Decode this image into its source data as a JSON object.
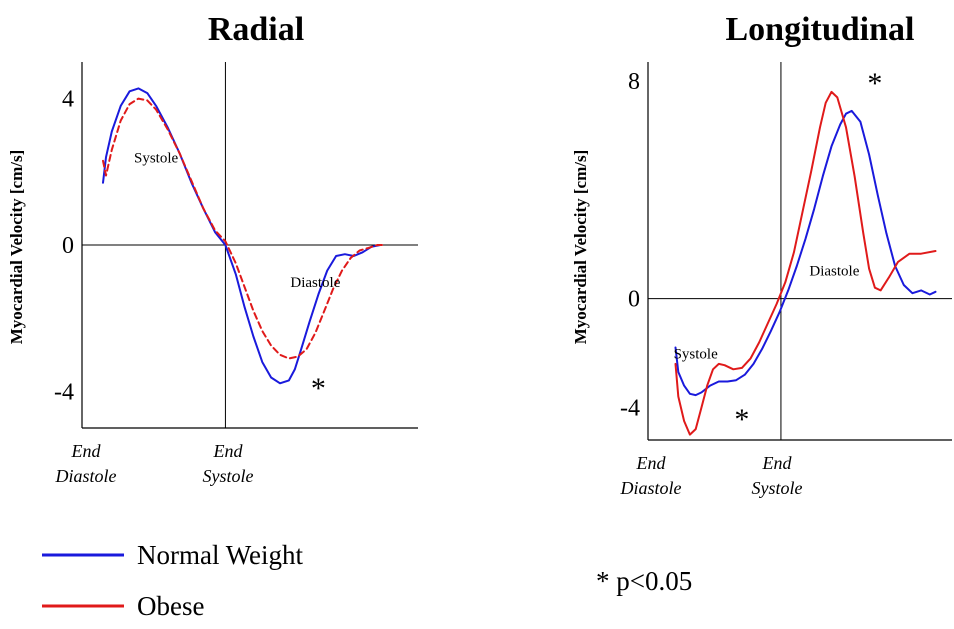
{
  "legend": {
    "items": [
      {
        "label": "Normal Weight",
        "color": "#1a1adc"
      },
      {
        "label": "Obese",
        "color": "#e01a1a"
      }
    ],
    "significance_note": "* p<0.05"
  },
  "chart_data": [
    {
      "type": "line",
      "title": "Radial",
      "ylabel": "Myocardial Velocity [cm/s]",
      "xlabel": "",
      "ylim": [
        -5,
        5
      ],
      "yticks": [
        {
          "value": 4,
          "label": "4"
        },
        {
          "value": 0,
          "label": "0"
        },
        {
          "value": -4,
          "label": "-4"
        }
      ],
      "x_range": [
        0,
        1
      ],
      "x_event_labels": [
        {
          "x": 0.0,
          "line1": "End",
          "line2": "Diastole"
        },
        {
          "x": 0.415,
          "line1": "End",
          "line2": "Systole"
        }
      ],
      "phase_labels": [
        {
          "text": "Systole",
          "x": 0.18,
          "y": 2.25
        },
        {
          "text": "Diastole",
          "x": 0.72,
          "y": -1.15
        }
      ],
      "annotations": [
        {
          "text": "*",
          "x": 0.73,
          "y": -3.85
        }
      ],
      "series": [
        {
          "name": "Normal Weight",
          "color": "#1a1adc",
          "dash": "solid",
          "x": [
            0.0,
            0.01,
            0.03,
            0.06,
            0.09,
            0.12,
            0.15,
            0.18,
            0.22,
            0.26,
            0.3,
            0.34,
            0.38,
            0.415,
            0.45,
            0.48,
            0.51,
            0.54,
            0.57,
            0.6,
            0.63,
            0.65,
            0.67,
            0.7,
            0.73,
            0.76,
            0.79,
            0.82,
            0.85,
            0.88,
            0.91,
            0.94
          ],
          "y": [
            1.7,
            2.4,
            3.1,
            3.8,
            4.2,
            4.28,
            4.15,
            3.8,
            3.2,
            2.5,
            1.7,
            1.0,
            0.35,
            0.0,
            -0.8,
            -1.7,
            -2.5,
            -3.2,
            -3.62,
            -3.78,
            -3.7,
            -3.4,
            -2.9,
            -2.1,
            -1.35,
            -0.7,
            -0.3,
            -0.25,
            -0.3,
            -0.2,
            -0.05,
            0.0
          ]
        },
        {
          "name": "Obese",
          "color": "#e01a1a",
          "dash": "dashed",
          "x": [
            0.0,
            0.01,
            0.03,
            0.06,
            0.09,
            0.12,
            0.15,
            0.18,
            0.22,
            0.26,
            0.3,
            0.34,
            0.38,
            0.415,
            0.45,
            0.48,
            0.51,
            0.54,
            0.57,
            0.6,
            0.63,
            0.66,
            0.69,
            0.72,
            0.75,
            0.78,
            0.81,
            0.84,
            0.87,
            0.9,
            0.93,
            0.95
          ],
          "y": [
            2.3,
            1.9,
            2.6,
            3.4,
            3.85,
            4.0,
            3.95,
            3.7,
            3.15,
            2.5,
            1.75,
            1.0,
            0.4,
            0.1,
            -0.5,
            -1.15,
            -1.8,
            -2.35,
            -2.75,
            -3.0,
            -3.1,
            -3.05,
            -2.85,
            -2.4,
            -1.8,
            -1.2,
            -0.7,
            -0.35,
            -0.15,
            -0.08,
            0.0,
            0.0
          ]
        }
      ]
    },
    {
      "type": "line",
      "title": "Longitudinal",
      "ylabel": "Myocardial Velocity [cm/s]",
      "xlabel": "",
      "ylim": [
        -5.2,
        8.7
      ],
      "yticks": [
        {
          "value": 8,
          "label": "8"
        },
        {
          "value": 0,
          "label": "0"
        },
        {
          "value": -4,
          "label": "-4"
        }
      ],
      "x_range": [
        0,
        1
      ],
      "x_event_labels": [
        {
          "x": 0.0,
          "line1": "End",
          "line2": "Diastole"
        },
        {
          "x": 0.415,
          "line1": "End",
          "line2": "Systole"
        }
      ],
      "phase_labels": [
        {
          "text": "Systole",
          "x": 0.12,
          "y": -2.2
        },
        {
          "text": "Diastole",
          "x": 0.6,
          "y": 0.85
        }
      ],
      "annotations": [
        {
          "text": "*",
          "x": 0.28,
          "y": -4.35
        },
        {
          "text": "*",
          "x": 0.74,
          "y": 8.0
        }
      ],
      "series": [
        {
          "name": "Normal Weight",
          "color": "#1a1adc",
          "dash": "solid",
          "x": [
            0.05,
            0.06,
            0.08,
            0.1,
            0.12,
            0.14,
            0.17,
            0.2,
            0.23,
            0.26,
            0.29,
            0.32,
            0.35,
            0.38,
            0.41,
            0.44,
            0.47,
            0.5,
            0.53,
            0.56,
            0.59,
            0.62,
            0.64,
            0.66,
            0.69,
            0.72,
            0.75,
            0.78,
            0.81,
            0.84,
            0.87,
            0.9,
            0.93,
            0.95
          ],
          "y": [
            -1.8,
            -2.7,
            -3.2,
            -3.5,
            -3.55,
            -3.45,
            -3.2,
            -3.05,
            -3.05,
            -3.0,
            -2.8,
            -2.4,
            -1.85,
            -1.2,
            -0.5,
            0.3,
            1.2,
            2.2,
            3.3,
            4.5,
            5.6,
            6.4,
            6.8,
            6.9,
            6.5,
            5.3,
            3.8,
            2.4,
            1.2,
            0.5,
            0.2,
            0.3,
            0.15,
            0.25
          ]
        },
        {
          "name": "Obese",
          "color": "#e01a1a",
          "dash": "solid",
          "x": [
            0.05,
            0.06,
            0.08,
            0.1,
            0.12,
            0.14,
            0.16,
            0.18,
            0.2,
            0.22,
            0.25,
            0.28,
            0.31,
            0.34,
            0.37,
            0.4,
            0.43,
            0.46,
            0.49,
            0.52,
            0.55,
            0.57,
            0.59,
            0.61,
            0.64,
            0.67,
            0.7,
            0.72,
            0.74,
            0.76,
            0.79,
            0.82,
            0.86,
            0.9,
            0.95
          ],
          "y": [
            -2.4,
            -3.6,
            -4.5,
            -5.0,
            -4.8,
            -4.0,
            -3.2,
            -2.6,
            -2.4,
            -2.45,
            -2.6,
            -2.55,
            -2.2,
            -1.6,
            -0.9,
            -0.2,
            0.6,
            1.7,
            3.2,
            4.7,
            6.3,
            7.2,
            7.6,
            7.4,
            6.3,
            4.5,
            2.4,
            1.1,
            0.4,
            0.3,
            0.8,
            1.35,
            1.65,
            1.65,
            1.75
          ]
        }
      ]
    }
  ]
}
